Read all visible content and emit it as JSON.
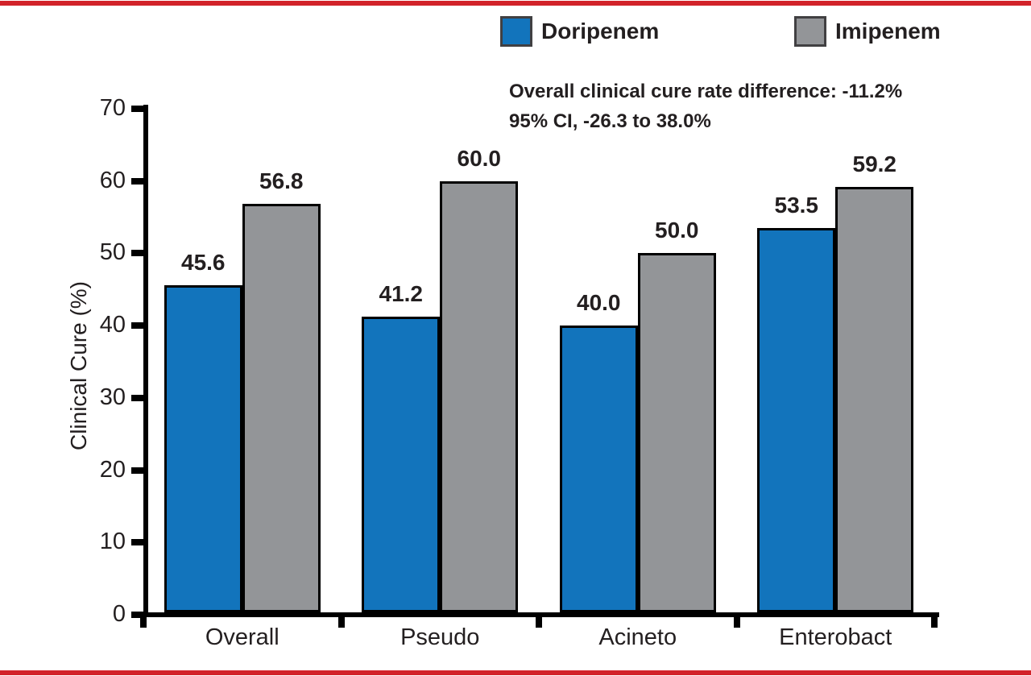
{
  "colors": {
    "doripenem_blue": "#1274BC",
    "imipenem_gray": "#939598",
    "frame_red": "#D2232A",
    "text_dark": "#231F20",
    "axis_black": "#000000"
  },
  "legend": [
    {
      "label": "Doripenem",
      "color": "#1274BC"
    },
    {
      "label": "Imipenem",
      "color": "#939598"
    }
  ],
  "annotation": {
    "line1": "Overall clinical cure rate difference: -11.2%",
    "line2": "95% CI, -26.3 to 38.0%"
  },
  "chart_data": {
    "type": "bar",
    "categories": [
      "Overall",
      "Pseudo",
      "Acineto",
      "Enterobact"
    ],
    "series": [
      {
        "name": "Doripenem",
        "color": "#1274BC",
        "values": [
          45.6,
          41.2,
          40.0,
          53.5
        ]
      },
      {
        "name": "Imipenem",
        "color": "#939598",
        "values": [
          56.8,
          60.0,
          50.0,
          59.2
        ]
      }
    ],
    "title": "",
    "xlabel": "",
    "ylabel": "Clinical Cure (%)",
    "ylim": [
      0,
      70
    ],
    "yticks": [
      0,
      10,
      20,
      30,
      40,
      50,
      60,
      70
    ],
    "value_label_decimals": 1,
    "grid": false,
    "legend_position": "top"
  }
}
